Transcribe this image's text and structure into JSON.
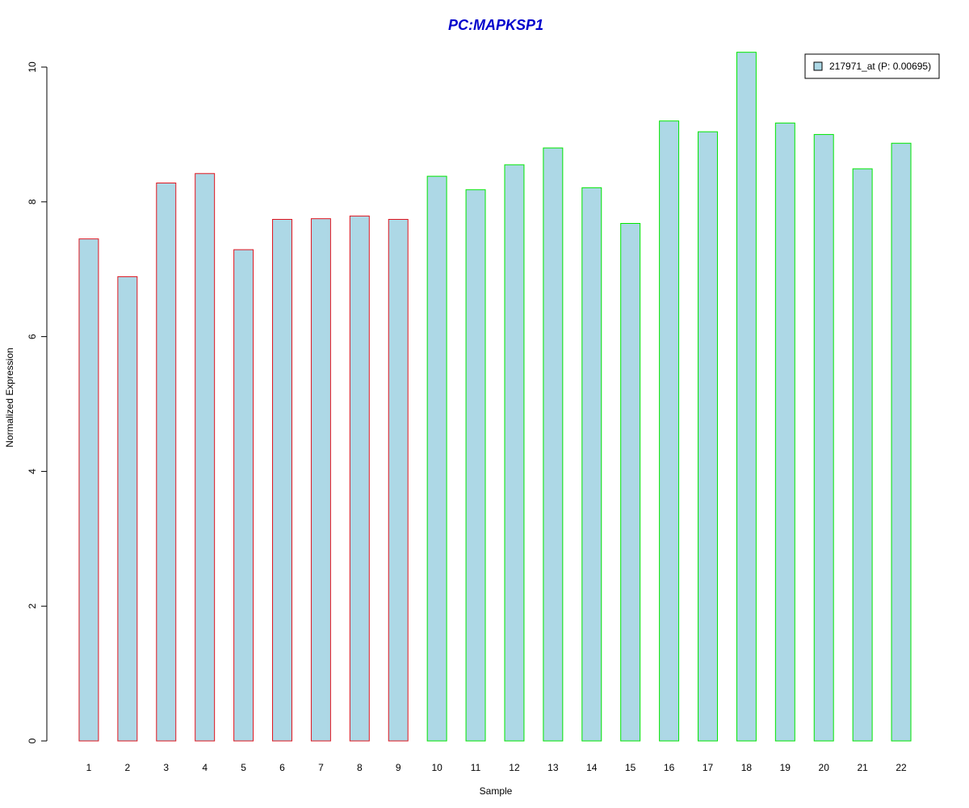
{
  "chart_data": {
    "type": "bar",
    "title": "PC:MAPKSP1",
    "xlabel": "Sample",
    "ylabel": "Normalized Expression",
    "categories": [
      "1",
      "2",
      "3",
      "4",
      "5",
      "6",
      "7",
      "8",
      "9",
      "10",
      "11",
      "12",
      "13",
      "14",
      "15",
      "16",
      "17",
      "18",
      "19",
      "20",
      "21",
      "22"
    ],
    "series": [
      {
        "name": "217971_at (P: 0.00695)",
        "values": [
          7.45,
          6.89,
          8.28,
          8.42,
          7.29,
          7.74,
          7.75,
          7.79,
          7.74,
          8.38,
          8.18,
          8.55,
          8.8,
          8.21,
          7.68,
          9.2,
          9.04,
          10.22,
          9.17,
          9.0,
          8.49,
          8.87
        ]
      }
    ],
    "groups": [
      0,
      0,
      0,
      0,
      0,
      0,
      0,
      0,
      0,
      1,
      1,
      1,
      1,
      1,
      1,
      1,
      1,
      1,
      1,
      1,
      1,
      1
    ],
    "ylim": [
      0,
      10.3
    ],
    "yticks": [
      0,
      2,
      4,
      6,
      8,
      10
    ],
    "grid": false,
    "legend_position": "top-right",
    "colors": {
      "bar_fill": "#add8e6",
      "group_borders": [
        "#e0141e",
        "#00e600"
      ],
      "title": "#0000cc",
      "axis": "#000000"
    }
  }
}
